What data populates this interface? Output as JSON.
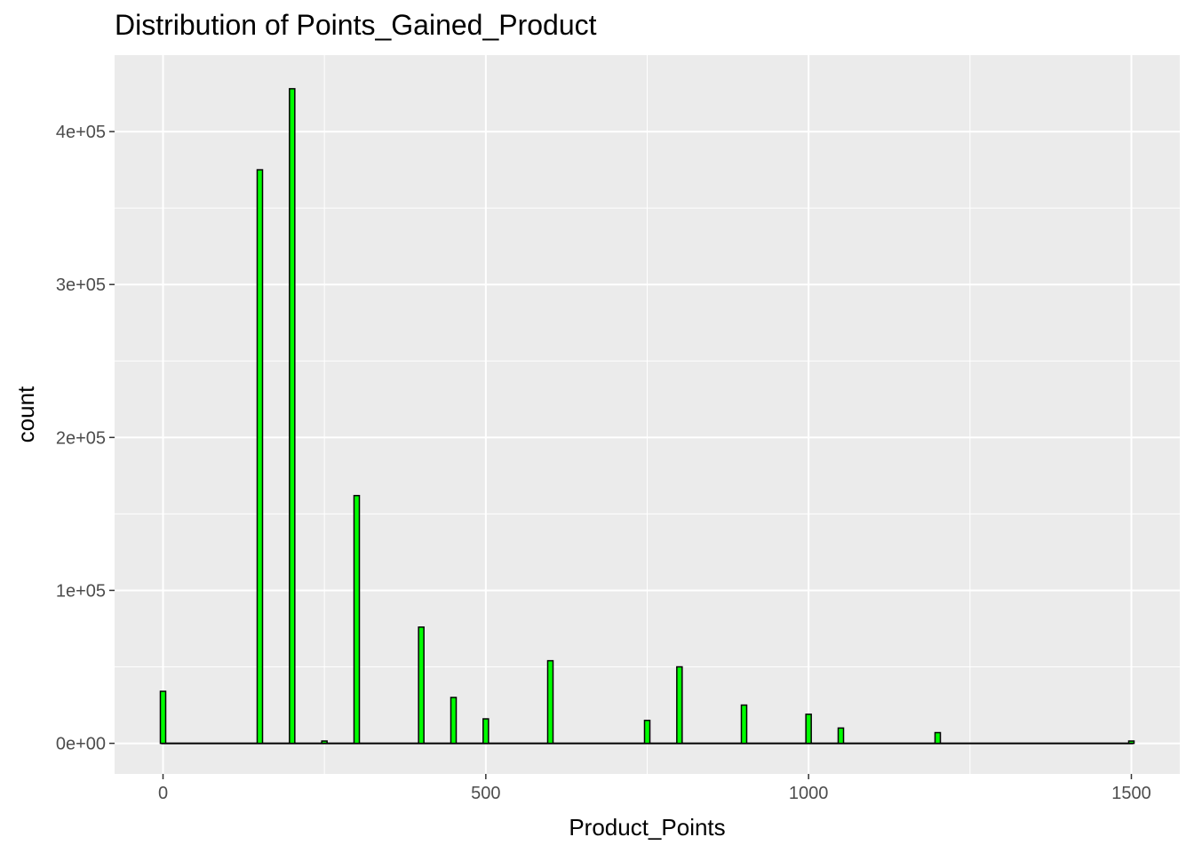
{
  "chart_data": {
    "type": "bar",
    "title": "Distribution of Points_Gained_Product",
    "xlabel": "Product_Points",
    "ylabel": "count",
    "xlim": [
      -75,
      1575
    ],
    "ylim": [
      -20000,
      450000
    ],
    "x_ticks": [
      0,
      500,
      1000,
      1500
    ],
    "x_tick_labels": [
      "0",
      "500",
      "1000",
      "1500"
    ],
    "y_ticks": [
      0,
      100000,
      200000,
      300000,
      400000
    ],
    "y_tick_labels": [
      "0e+00",
      "1e+05",
      "2e+05",
      "3e+05",
      "4e+05"
    ],
    "grid": true,
    "bar_fill": "#00ff00",
    "bar_outline": "#000000",
    "panel_background": "#ebebeb",
    "grid_color": "#ffffff",
    "x": [
      0,
      150,
      200,
      250,
      300,
      400,
      450,
      500,
      600,
      750,
      800,
      900,
      1000,
      1050,
      1200,
      1500
    ],
    "values": [
      34000,
      375000,
      428000,
      1500,
      162000,
      76000,
      30000,
      16000,
      54000,
      15000,
      50000,
      25000,
      19000,
      10000,
      7000,
      1500
    ]
  }
}
